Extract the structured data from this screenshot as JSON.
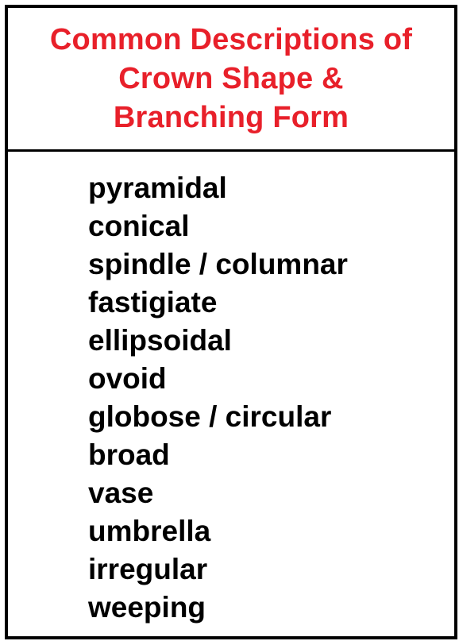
{
  "header": {
    "title_lines": [
      "Common Descriptions of",
      "Crown Shape &",
      "Branching Form"
    ],
    "title_color": "#e8202a"
  },
  "terms": [
    "pyramidal",
    "conical",
    "spindle / columnar",
    "fastigiate",
    "ellipsoidal",
    "ovoid",
    "globose / circular",
    "broad",
    "vase",
    "umbrella",
    "irregular",
    "weeping"
  ]
}
